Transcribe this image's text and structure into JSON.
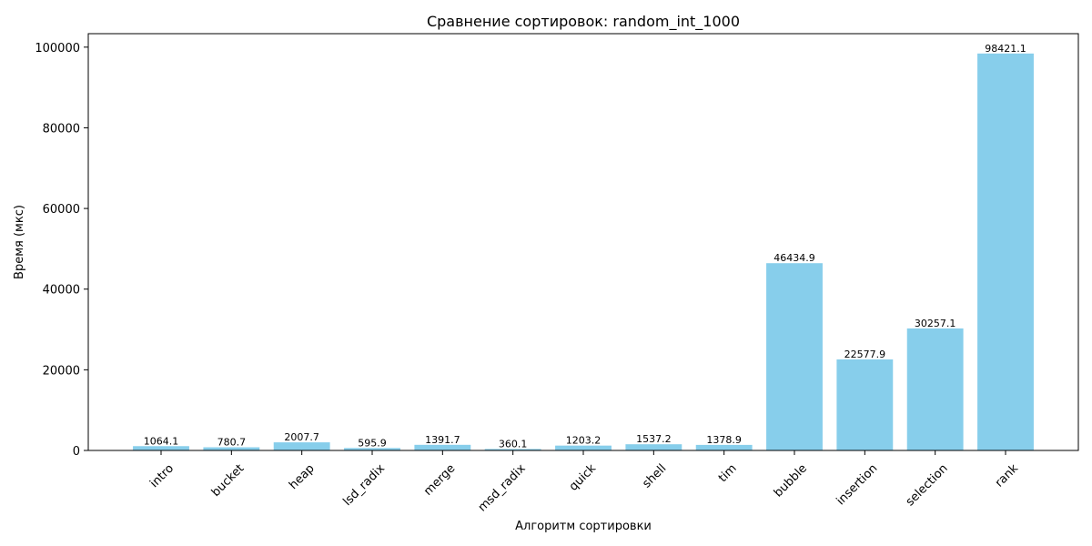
{
  "chart_data": {
    "type": "bar",
    "title": "Сравнение сортировок: random_int_1000",
    "xlabel": "Алгоритм сортировки",
    "ylabel": "Время (мкс)",
    "categories": [
      "intro",
      "bucket",
      "heap",
      "lsd_radix",
      "merge",
      "msd_radix",
      "quick",
      "shell",
      "tim",
      "bubble",
      "insertion",
      "selection",
      "rank"
    ],
    "values": [
      1064.1,
      780.7,
      2007.7,
      595.9,
      1391.7,
      360.1,
      1203.2,
      1537.2,
      1378.9,
      46434.9,
      22577.9,
      30257.1,
      98421.1
    ],
    "data_labels": [
      "1064.1",
      "780.7",
      "2007.7",
      "595.9",
      "1391.7",
      "360.1",
      "1203.2",
      "1537.2",
      "1378.9",
      "46434.9",
      "22577.9",
      "30257.1",
      "98421.1"
    ],
    "yticks": [
      0,
      20000,
      40000,
      60000,
      80000,
      100000
    ],
    "ytick_labels": [
      "0",
      "20000",
      "40000",
      "60000",
      "80000",
      "100000"
    ],
    "ylim": [
      0,
      103342
    ],
    "bar_color": "#87ceeb",
    "grid": false,
    "legend": "none"
  }
}
